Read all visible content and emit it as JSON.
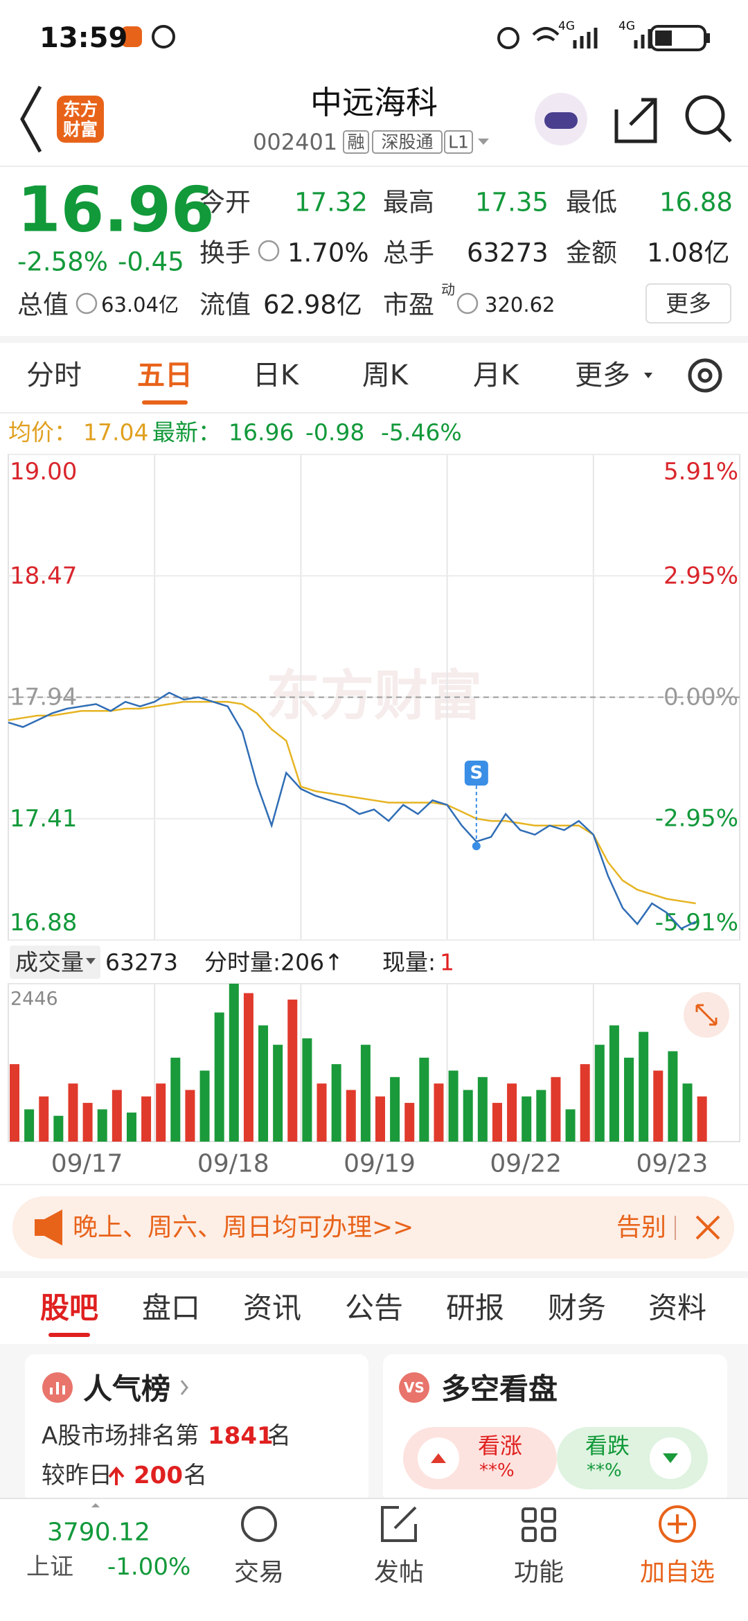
{
  "status_bar": {
    "time": "13:59",
    "signal_labels": [
      "4G",
      "4G"
    ]
  },
  "header": {
    "logo": [
      "东方",
      "财富"
    ],
    "title": "中远海科",
    "code": "002401",
    "tags": [
      "融",
      "深股通",
      "L1"
    ]
  },
  "quote": {
    "price": "16.96",
    "change_pct": "-2.58%",
    "change": "-0.45",
    "stats": [
      {
        "label": "今开",
        "value": "17.32"
      },
      {
        "label": "最高",
        "value": "17.35"
      },
      {
        "label": "最低",
        "value": "16.88"
      },
      {
        "label": "换手",
        "value": "1.70%"
      },
      {
        "label": "总手",
        "value": "63273"
      },
      {
        "label": "金额",
        "value": "1.08亿"
      },
      {
        "label": "总值",
        "value": "63.04亿"
      },
      {
        "label": "流值",
        "value": "62.98亿"
      },
      {
        "label": "市盈",
        "superscript": "动",
        "value": "320.62"
      }
    ],
    "more_button": "更多"
  },
  "period_tabs": {
    "items": [
      "分时",
      "五日",
      "日K",
      "周K",
      "月K",
      "更多"
    ],
    "active": 1
  },
  "info_line": {
    "avg_label": "均价：",
    "avg": "17.04",
    "latest_label": "最新：",
    "latest": "16.96",
    "change": "-0.98",
    "change_pct": "-5.46%"
  },
  "chart_data": [
    {
      "type": "line",
      "watermark": "东方财富",
      "xlim": [
        0,
        5
      ],
      "ylim": [
        16.88,
        19.0
      ],
      "yticks": [
        {
          "value": 19.0,
          "label": "19.00"
        },
        {
          "value": 18.47,
          "label": "18.47"
        },
        {
          "value": 17.94,
          "label": "17.94"
        },
        {
          "value": 17.41,
          "label": "17.41"
        },
        {
          "value": 16.88,
          "label": "16.88"
        }
      ],
      "y2lim": [
        -5.91,
        5.91
      ],
      "y2ticks": [
        {
          "value": 5.91,
          "label": "5.91%"
        },
        {
          "value": 2.95,
          "label": "2.95%"
        },
        {
          "value": 0,
          "label": "0.00%"
        },
        {
          "value": -2.95,
          "label": "-2.95%"
        },
        {
          "value": -5.91,
          "label": "-5.91%"
        }
      ],
      "reference_line": 17.94,
      "x": [
        0,
        0.1,
        0.2,
        0.3,
        0.4,
        0.5,
        0.6,
        0.7,
        0.8,
        0.9,
        1,
        1.1,
        1.2,
        1.3,
        1.4,
        1.5,
        1.6,
        1.7,
        1.8,
        1.9,
        2,
        2.1,
        2.2,
        2.3,
        2.4,
        2.5,
        2.6,
        2.7,
        2.8,
        2.9,
        3,
        3.1,
        3.2,
        3.3,
        3.4,
        3.5,
        3.6,
        3.7,
        3.8,
        3.9,
        4,
        4.1,
        4.2,
        4.3,
        4.4,
        4.5,
        4.6,
        4.7
      ],
      "series": [
        {
          "color": "#2f6db5",
          "values": [
            17.83,
            17.81,
            17.84,
            17.87,
            17.89,
            17.9,
            17.91,
            17.88,
            17.92,
            17.9,
            17.92,
            17.96,
            17.93,
            17.94,
            17.92,
            17.9,
            17.79,
            17.56,
            17.38,
            17.61,
            17.54,
            17.51,
            17.49,
            17.47,
            17.43,
            17.45,
            17.4,
            17.47,
            17.43,
            17.49,
            17.47,
            17.38,
            17.31,
            17.33,
            17.43,
            17.36,
            17.34,
            17.38,
            17.36,
            17.4,
            17.34,
            17.16,
            17.02,
            16.95,
            17.04,
            17.0,
            16.93,
            16.96
          ]
        },
        {
          "color": "#e6b422",
          "values": [
            17.84,
            17.85,
            17.86,
            17.86,
            17.87,
            17.88,
            17.88,
            17.88,
            17.89,
            17.89,
            17.9,
            17.91,
            17.92,
            17.92,
            17.92,
            17.92,
            17.91,
            17.87,
            17.8,
            17.75,
            17.55,
            17.53,
            17.52,
            17.51,
            17.5,
            17.49,
            17.48,
            17.48,
            17.48,
            17.48,
            17.47,
            17.44,
            17.41,
            17.4,
            17.4,
            17.39,
            17.38,
            17.38,
            17.38,
            17.38,
            17.34,
            17.22,
            17.14,
            17.1,
            17.08,
            17.06,
            17.05,
            17.04
          ]
        }
      ],
      "marker": {
        "label": "S",
        "x": 3.2,
        "value": 17.29
      }
    },
    {
      "type": "bar",
      "xlim": [
        0,
        5
      ],
      "ylim": [
        0,
        2446
      ],
      "yticks": [
        2446
      ],
      "day_labels": [
        "09/17",
        "09/18",
        "09/19",
        "09/22",
        "09/23"
      ],
      "x": [
        0,
        0.1,
        0.2,
        0.3,
        0.4,
        0.5,
        0.6,
        0.7,
        0.8,
        0.9,
        1,
        1.1,
        1.2,
        1.3,
        1.4,
        1.5,
        1.6,
        1.7,
        1.8,
        1.9,
        2,
        2.1,
        2.2,
        2.3,
        2.4,
        2.5,
        2.6,
        2.7,
        2.8,
        2.9,
        3,
        3.1,
        3.2,
        3.3,
        3.4,
        3.5,
        3.6,
        3.7,
        3.8,
        3.9,
        4,
        4.1,
        4.2,
        4.3,
        4.4,
        4.5,
        4.6,
        4.7
      ],
      "values": [
        1200,
        500,
        700,
        400,
        900,
        600,
        500,
        800,
        450,
        700,
        900,
        1300,
        800,
        1100,
        2000,
        2446,
        2300,
        1800,
        1500,
        2200,
        1600,
        900,
        1200,
        800,
        1500,
        700,
        1000,
        600,
        1300,
        900,
        1100,
        800,
        1000,
        600,
        900,
        700,
        800,
        1000,
        500,
        1200,
        1500,
        1800,
        1300,
        1700,
        1100,
        1400,
        900,
        700
      ],
      "colors": [
        "#e03a2c",
        "#1a9a3a",
        "#e03a2c",
        "#1a9a3a",
        "#e03a2c",
        "#e03a2c",
        "#1a9a3a",
        "#e03a2c",
        "#1a9a3a",
        "#e03a2c",
        "#e03a2c",
        "#1a9a3a",
        "#e03a2c",
        "#1a9a3a",
        "#1a9a3a",
        "#1a9a3a",
        "#e03a2c",
        "#1a9a3a",
        "#1a9a3a",
        "#e03a2c",
        "#1a9a3a",
        "#e03a2c",
        "#1a9a3a",
        "#e03a2c",
        "#1a9a3a",
        "#e03a2c",
        "#1a9a3a",
        "#e03a2c",
        "#1a9a3a",
        "#e03a2c",
        "#1a9a3a",
        "#1a9a3a",
        "#1a9a3a",
        "#e03a2c",
        "#e03a2c",
        "#1a9a3a",
        "#1a9a3a",
        "#e03a2c",
        "#1a9a3a",
        "#e03a2c",
        "#1a9a3a",
        "#1a9a3a",
        "#1a9a3a",
        "#1a9a3a",
        "#e03a2c",
        "#1a9a3a",
        "#1a9a3a",
        "#e03a2c"
      ]
    }
  ],
  "volume_header": {
    "label": "成交量",
    "total": "63273",
    "tick_volume": "分时量:206↑",
    "current_label": "现量:",
    "current": "1"
  },
  "banner": {
    "text": "晚上、周六、周日均可办理>>",
    "close_label": "告别"
  },
  "content_tabs": {
    "items": [
      "股吧",
      "盘口",
      "资讯",
      "公告",
      "研报",
      "财务",
      "资料"
    ],
    "active": 0
  },
  "cards": {
    "popularity": {
      "title": "人气榜",
      "rank_prefix": "A股市场排名第",
      "rank": "1841",
      "rank_suffix": "名",
      "change_prefix": "较昨日",
      "change": "200",
      "change_suffix": "名"
    },
    "sentiment": {
      "icon": "VS",
      "title": "多空看盘",
      "up_label": "看涨",
      "up_value": "**%",
      "down_label": "看跌",
      "down_value": "**%"
    }
  },
  "bottom_nav": {
    "index_value": "3790.12",
    "index_name": "上证",
    "index_change": "-1.00%",
    "items": [
      "交易",
      "发帖",
      "功能",
      "加自选"
    ]
  }
}
